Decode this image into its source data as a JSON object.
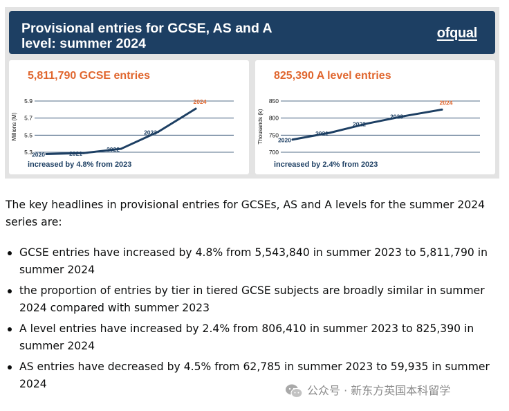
{
  "banner": {
    "title_line1": "Provisional entries for GCSE, AS and A",
    "title_line2": "level: summer 2024",
    "logo": "ofqual"
  },
  "panels": {
    "gcse": {
      "title": "5,811,790 GCSE entries",
      "caption": "increased by 4.8% from 2023"
    },
    "alevel": {
      "title": "825,390 A level entries",
      "caption": "increased by 2.4% from 2023"
    }
  },
  "chart_data": [
    {
      "type": "line",
      "title": "5,811,790 GCSE entries",
      "ylabel": "Millions (M)",
      "x": [
        "2020",
        "2021",
        "2022",
        "2023",
        "2024"
      ],
      "values": [
        5.28,
        5.29,
        5.34,
        5.54,
        5.81
      ],
      "yticks": [
        5.3,
        5.5,
        5.7,
        5.9
      ],
      "ylim": [
        5.3,
        5.9
      ],
      "grid": true,
      "line_color": "#1d3f63",
      "highlight_color": "#e0662e"
    },
    {
      "type": "line",
      "title": "825,390 A level entries",
      "ylabel": "Thousands (k)",
      "x": [
        "2020",
        "2021",
        "2022",
        "2023",
        "2024"
      ],
      "values": [
        737,
        757,
        784,
        806,
        825
      ],
      "yticks": [
        700,
        750,
        800,
        850
      ],
      "ylim": [
        700,
        850
      ],
      "grid": true,
      "line_color": "#1d3f63",
      "highlight_color": "#e0662e"
    }
  ],
  "intro": "The key headlines in provisional entries for GCSEs, AS and A levels for the summer 2024 series are:",
  "headlines": [
    "GCSE entries have increased by 4.8% from 5,543,840 in summer 2023 to 5,811,790 in summer 2024",
    "the proportion of entries by tier in tiered GCSE subjects are broadly similar in summer 2024 compared with summer 2023",
    "A level entries have increased by 2.4% from 806,410 in summer 2023 to 825,390 in summer 2024",
    "AS entries have decreased by 4.5% from 62,785 in summer 2023 to 59,935 in summer 2024"
  ],
  "watermark": {
    "text": "公众号 · 新东方英国本科留学",
    "icon": "wechat-icon"
  },
  "colors": {
    "banner": "#1d3f63",
    "accent_orange": "#e0662e",
    "panel_background": "#e3e3e3"
  }
}
